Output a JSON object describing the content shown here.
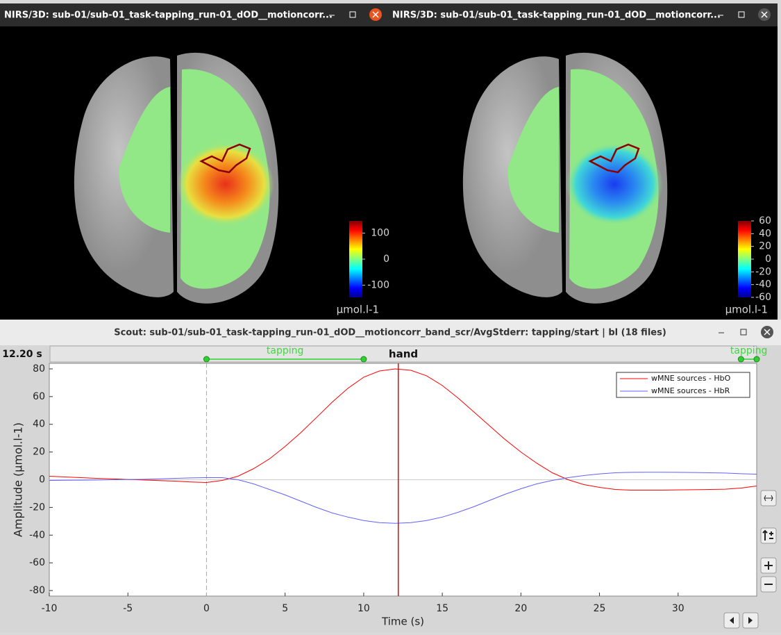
{
  "windows": [
    {
      "title": "NIRS/3D: sub-01/sub-01_task-tapping_run-01_dOD__motioncorr...",
      "colorbar": {
        "clim": [
          -147,
          147
        ],
        "ticks": [
          100,
          0,
          -100
        ],
        "unit": "μmol.l-1"
      }
    },
    {
      "title": "NIRS/3D: sub-01/sub-01_task-tapping_run-01_dOD__motioncorr...",
      "colorbar": {
        "clim": [
          -60,
          60
        ],
        "ticks": [
          60,
          40,
          20,
          0,
          -20,
          -40,
          -60
        ],
        "unit": "μmol.l-1"
      }
    }
  ],
  "scout_window": {
    "title": "Scout: sub-01/sub-01_task-tapping_run-01_dOD__motioncorr_band_scr/AvgStderr: tapping/start  | bl (18 files)",
    "time_label": "12.20 s"
  },
  "chart_data": {
    "type": "line",
    "title": "hand",
    "xlabel": "Time (s)",
    "ylabel": "Amplitude (μmol.l-1)",
    "x": [
      -10,
      -9,
      -8,
      -7,
      -6,
      -5,
      -4,
      -3,
      -2,
      -1,
      0,
      1,
      2,
      3,
      4,
      5,
      6,
      7,
      8,
      9,
      10,
      11,
      12,
      13,
      14,
      15,
      16,
      17,
      18,
      19,
      20,
      21,
      22,
      23,
      24,
      25,
      26,
      27,
      28,
      29,
      30,
      31,
      32,
      33,
      34,
      35
    ],
    "series": [
      {
        "name": "wMNE sources - HbO",
        "color": "#ff0000",
        "values": [
          2.5,
          2,
          1.5,
          1,
          0.6,
          0.2,
          -0.2,
          -0.6,
          -1,
          -1.6,
          -2,
          -0.5,
          2.5,
          8,
          15,
          24,
          34,
          45,
          56,
          66,
          74,
          78.5,
          80,
          79,
          75,
          68,
          59,
          49,
          39,
          29,
          20,
          12,
          5,
          0,
          -3.5,
          -5.5,
          -7,
          -7.5,
          -7.5,
          -7.5,
          -7.3,
          -7.2,
          -7,
          -6.8,
          -6,
          -4.5
        ]
      },
      {
        "name": "wMNE sources - HbR",
        "color": "#6060ff",
        "values": [
          -0.5,
          -0.4,
          -0.3,
          -0.2,
          0,
          0.1,
          0.3,
          0.6,
          1,
          1.3,
          1.5,
          1.5,
          0,
          -3,
          -7,
          -11,
          -15.5,
          -20,
          -24,
          -27,
          -29.5,
          -31,
          -31.5,
          -31,
          -29.5,
          -27,
          -23.5,
          -19.5,
          -15,
          -10.5,
          -6.5,
          -3,
          -0.5,
          1.5,
          3,
          4.2,
          5,
          5.3,
          5.4,
          5.4,
          5.3,
          5.2,
          5,
          4.8,
          4.3,
          4
        ]
      }
    ],
    "xlim": [
      -10,
      35
    ],
    "ylim": [
      -84,
      84
    ],
    "xticks": [
      -10,
      -5,
      0,
      5,
      10,
      15,
      20,
      25,
      30
    ],
    "yticks": [
      -80,
      -60,
      -40,
      -20,
      0,
      20,
      40,
      60,
      80
    ],
    "cursor": 12.2,
    "events": [
      {
        "label": "tapping",
        "start": 0,
        "end": 10
      },
      {
        "label": "tapping",
        "start": 34,
        "end": 35
      }
    ],
    "legend": "top-right"
  }
}
